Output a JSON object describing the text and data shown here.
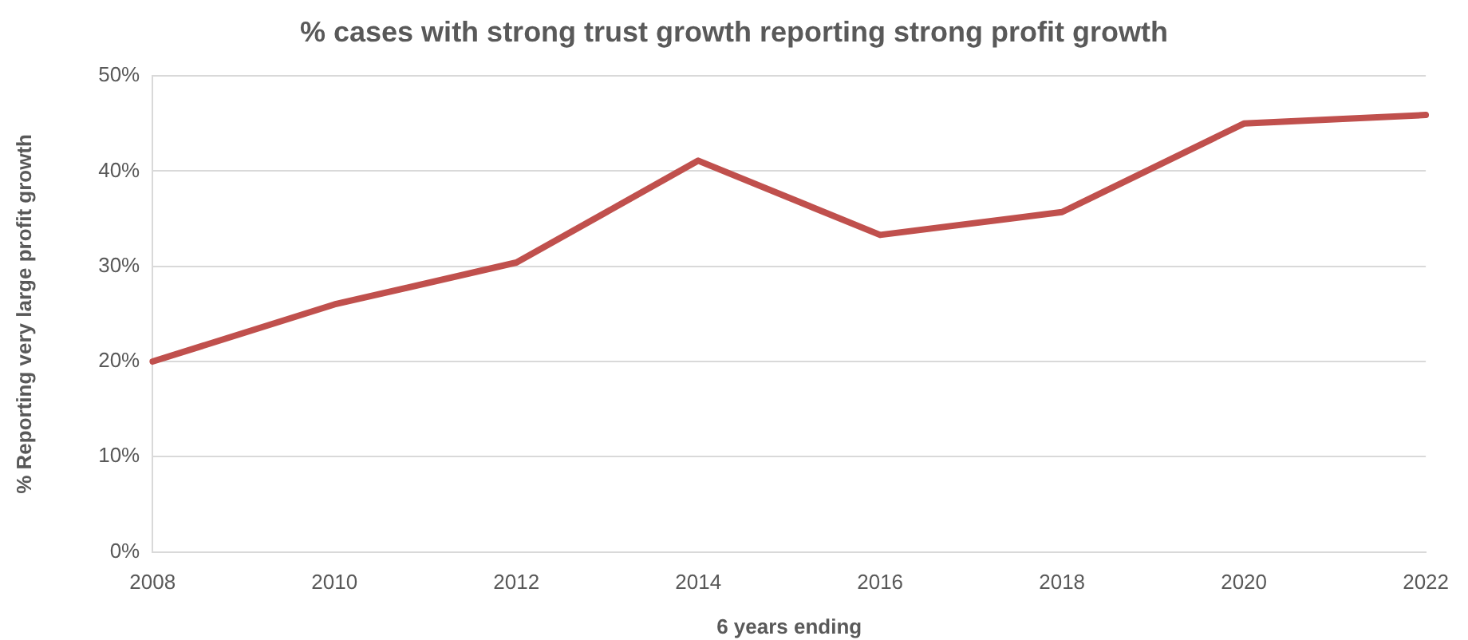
{
  "chart_data": {
    "type": "line",
    "title": "% cases with strong trust growth reporting strong profit growth",
    "xlabel": "6 years ending",
    "ylabel": "% Reporting very large profit growth",
    "categories": [
      "2008",
      "2010",
      "2012",
      "2014",
      "2016",
      "2018",
      "2020",
      "2022"
    ],
    "series": [
      {
        "color": "#c0504d",
        "values": [
          20,
          26,
          30.4,
          41.1,
          33.3,
          35.7,
          45,
          45.9
        ]
      }
    ],
    "ylim": [
      0,
      50
    ],
    "yticks": [
      {
        "value": 0,
        "label": "0%"
      },
      {
        "value": 10,
        "label": "10%"
      },
      {
        "value": 20,
        "label": "20%"
      },
      {
        "value": 30,
        "label": "30%"
      },
      {
        "value": 40,
        "label": "40%"
      },
      {
        "value": 50,
        "label": "50%"
      }
    ],
    "grid": "y",
    "legend": false,
    "marker": "none",
    "line_style": "solid"
  }
}
